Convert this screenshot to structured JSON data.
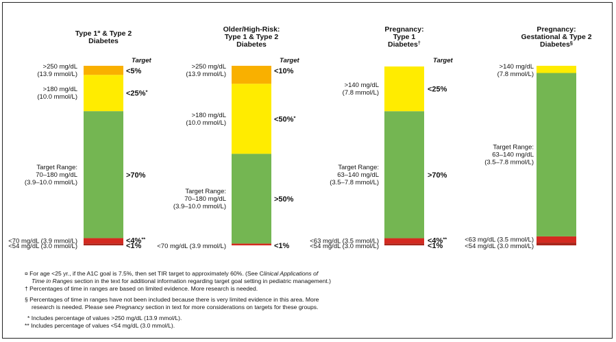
{
  "chart_data": [
    {
      "type": "stacked-bar",
      "title": [
        "Type 1¤ & Type 2",
        "Diabetes"
      ],
      "target_header": "Target",
      "segments": [
        {
          "range": [
            "<54 mg/dL (3.0 mmol/L)"
          ],
          "target": "<1%",
          "percent": 1,
          "color": "#a8261c"
        },
        {
          "range": [
            "<70 mg/dL (3.9 mmol/L)"
          ],
          "target": "<4%**",
          "percent": 3,
          "color": "#d42a20"
        },
        {
          "range": [
            "Target Range:",
            "70–180 mg/dL",
            "(3.9–10.0 mmol/L)"
          ],
          "target": ">70%",
          "percent": 70,
          "color": "#74b652"
        },
        {
          "range": [
            ">180 mg/dL",
            "(10.0 mmol/L)"
          ],
          "target": "<25%*",
          "percent": 20,
          "color": "#ffec00"
        },
        {
          "range": [
            ">250 mg/dL",
            "(13.9 mmol/L)"
          ],
          "target": "<5%",
          "percent": 5,
          "color": "#f9b000"
        }
      ]
    },
    {
      "type": "stacked-bar",
      "title": [
        "Older/High-Risk:",
        "Type 1 & Type 2",
        "Diabetes"
      ],
      "target_header": "Target",
      "segments": [
        {
          "range": [
            "<70 mg/dL (3.9 mmol/L)"
          ],
          "target": "<1%",
          "percent": 1,
          "color": "#d42a20"
        },
        {
          "range": [
            "Target Range:",
            "70–180 mg/dL",
            "(3.9–10.0 mmol/L)"
          ],
          "target": ">50%",
          "percent": 50,
          "color": "#74b652"
        },
        {
          "range": [
            ">180 mg/dL",
            "(10.0 mmol/L)"
          ],
          "target": "<50%*",
          "percent": 39,
          "color": "#ffec00"
        },
        {
          "range": [
            ">250 mg/dL",
            "(13.9 mmol/L)"
          ],
          "target": "<10%",
          "percent": 10,
          "color": "#f9b000"
        }
      ]
    },
    {
      "type": "stacked-bar",
      "title": [
        "Pregnancy:",
        "Type 1",
        "Diabetes†"
      ],
      "target_header": "Target",
      "segments": [
        {
          "range": [
            "<54 mg/dL (3.0 mmol/L)"
          ],
          "target": "<1%",
          "percent": 1,
          "color": "#a8261c"
        },
        {
          "range": [
            "<63 mg/dL (3.5 mmol/L)"
          ],
          "target": "<4%**",
          "percent": 3,
          "color": "#d42a20"
        },
        {
          "range": [
            "Target Range:",
            "63–140 mg/dL",
            "(3.5–7.8 mmol/L)"
          ],
          "target": ">70%",
          "percent": 71,
          "color": "#74b652"
        },
        {
          "range": [
            ">140 mg/dL",
            "(7.8 mmol/L)"
          ],
          "target": "<25%",
          "percent": 25,
          "color": "#ffec00"
        }
      ]
    },
    {
      "type": "stacked-bar",
      "title": [
        "Pregnancy:",
        "Gestational & Type 2",
        "Diabetes§"
      ],
      "target_header": "",
      "segments": [
        {
          "range": [
            "<54 mg/dL (3.0 mmol/L)"
          ],
          "target": "",
          "percent": 1.5,
          "color": "#a8261c"
        },
        {
          "range": [
            "<63 mg/dL (3.5 mmol/L)"
          ],
          "target": "",
          "percent": 3.5,
          "color": "#d42a20"
        },
        {
          "range": [
            "Target Range:",
            "63–140 mg/dL",
            "(3.5–7.8 mmol/L)"
          ],
          "target": "",
          "percent": 91,
          "color": "#74b652"
        },
        {
          "range": [
            ">140 mg/dL",
            "(7.8 mmol/L)"
          ],
          "target": "",
          "percent": 4,
          "color": "#ffec00"
        }
      ]
    }
  ],
  "footnotes": {
    "f1a": "¤  For age <25 yr., if the A1C goal is 7.5%, then set TIR target to approximately 60%.  (See C",
    "f1i": "linical Applications of",
    "f1b_i": "Time in Ranges",
    "f1b": " section in the text for additional information regarding target goal setting in pediatric management.)",
    "f2": "†  Percentages of time in ranges are based on limited evidence. More research is needed.",
    "f3a": "§  Percentages of time in ranges have not been included because there is very limited evidence in this area.  More",
    "f3b": "research is needed. Please see ",
    "f3b_i": "Pregnancy",
    "f3b2": " section in text for more considerations on targets for these groups.",
    "f4": "*  Includes percentage of values >250 mg/dL (13.9 mmol/L).",
    "f5": "** Includes percentage of values <54 mg/dL (3.0 mmol/L)."
  }
}
